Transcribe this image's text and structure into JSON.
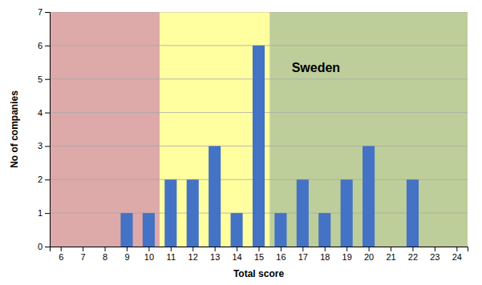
{
  "chart_data": {
    "type": "bar",
    "x": [
      6,
      7,
      8,
      9,
      10,
      11,
      12,
      13,
      14,
      15,
      16,
      17,
      18,
      19,
      20,
      21,
      22,
      23,
      24
    ],
    "values": [
      0,
      0,
      0,
      1,
      1,
      2,
      2,
      3,
      1,
      6,
      1,
      2,
      1,
      2,
      3,
      0,
      2,
      0,
      0
    ],
    "color": "#4472C4",
    "x_label": "Total score",
    "y_label": "No of companies",
    "xlim": [
      5.5,
      24.5
    ],
    "xticks": [
      6,
      7,
      8,
      9,
      10,
      11,
      12,
      13,
      14,
      15,
      16,
      17,
      18,
      19,
      20,
      21,
      22,
      23,
      24
    ],
    "ylim": [
      0,
      7
    ],
    "yticks": [
      0,
      1,
      2,
      3,
      4,
      5,
      6,
      7
    ],
    "grid": true,
    "regions": [
      {
        "range": [
          5.5,
          10.5
        ],
        "color": "#DDA9A9"
      },
      {
        "range": [
          10.5,
          15.5
        ],
        "color": "#FFFFA0"
      },
      {
        "range": [
          15.5,
          24.5
        ],
        "color": "#BECE9A"
      }
    ],
    "annotations": [
      {
        "text": "Sweden",
        "x": 16.5,
        "y": 5.2
      }
    ]
  }
}
